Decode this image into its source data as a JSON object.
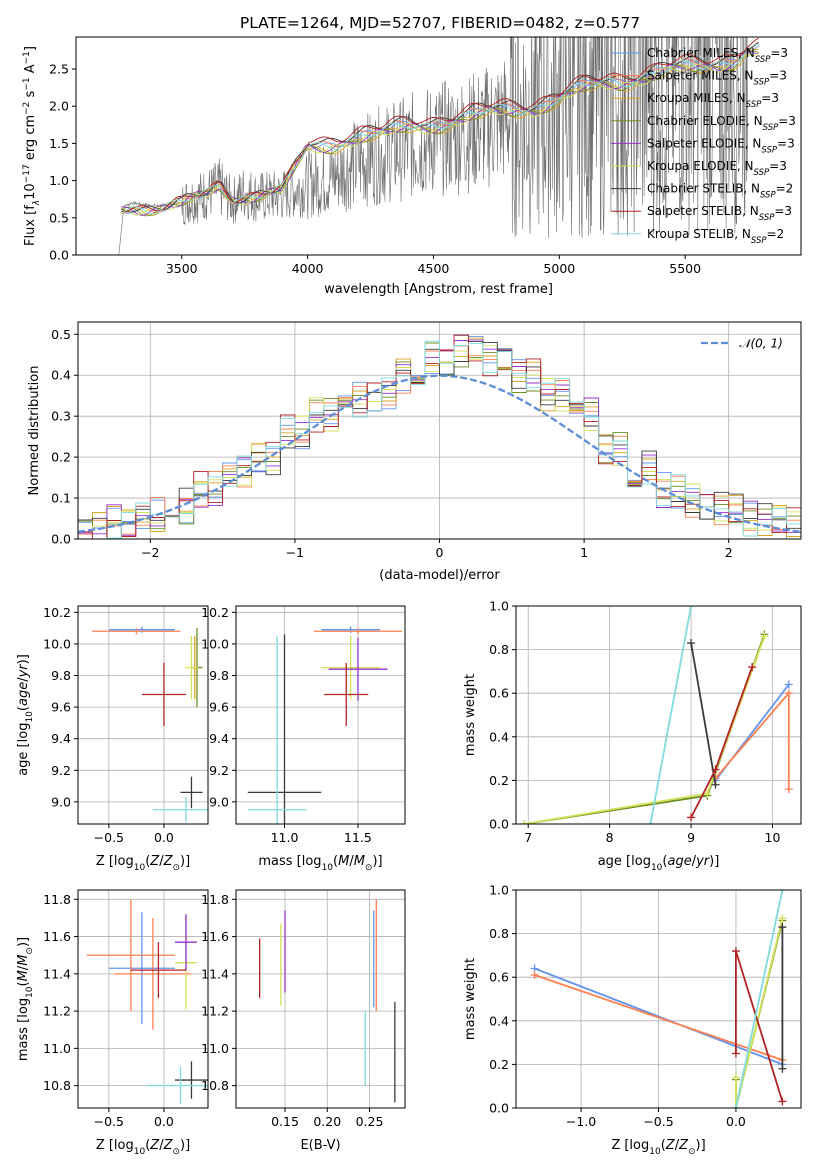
{
  "figure": {
    "title": "PLATE=1264, MJD=52707, FIBERID=0482, z=0.577"
  },
  "legend_series": [
    {
      "name": "Chabrier MILES, N_SSP=3",
      "color": "#6495ed"
    },
    {
      "name": "Salpeter MILES, N_SSP=3",
      "color": "#ff7f50"
    },
    {
      "name": "Kroupa MILES, N_SSP=3",
      "color": "#daa520"
    },
    {
      "name": "Chabrier ELODIE, N_SSP=3",
      "color": "#6b8e23"
    },
    {
      "name": "Salpeter ELODIE, N_SSP=3",
      "color": "#9932cc"
    },
    {
      "name": "Kroupa ELODIE, N_SSP=3",
      "color": "#d4e157"
    },
    {
      "name": "Chabrier STELIB, N_SSP=2",
      "color": "#3a3a3a"
    },
    {
      "name": "Salpeter STELIB, N_SSP=3",
      "color": "#b22222"
    },
    {
      "name": "Kroupa STELIB, N_SSP=2",
      "color": "#7fdbde"
    }
  ],
  "chart_data": [
    {
      "id": "spectrum",
      "type": "line",
      "title": "PLATE=1264, MJD=52707, FIBERID=0482, z=0.577",
      "xlabel": "wavelength [Angstrom, rest frame]",
      "ylabel": "Flux [f_λ 10^-17 erg cm^-2 s^-1 A^-1]",
      "ylabel_parts": [
        "Flux [f",
        "λ",
        "10",
        "−17",
        " erg cm",
        "−2",
        " s",
        "−1",
        " A",
        "−1",
        "]"
      ],
      "xlim": [
        3080,
        5960
      ],
      "ylim": [
        0,
        2.93
      ],
      "xticks": [
        3500,
        4000,
        4500,
        5000,
        5500
      ],
      "yticks": [
        0.0,
        0.5,
        1.0,
        1.5,
        2.0,
        2.5
      ],
      "grid": false,
      "legend_position": "upper right",
      "data_observed": {
        "x": [
          3250,
          3270,
          3300,
          3400,
          3500,
          3600,
          3650,
          3700,
          3750,
          3800,
          3900,
          4000,
          4100,
          4200,
          4300,
          4400,
          4500,
          4600,
          4700,
          4800,
          4900,
          5000,
          5100,
          5200,
          5300,
          5400,
          5500,
          5600,
          5700,
          5750
        ],
        "y": [
          0.0,
          0.65,
          0.7,
          0.66,
          0.7,
          0.82,
          0.9,
          0.72,
          0.85,
          0.78,
          0.8,
          0.95,
          1.05,
          1.25,
          1.35,
          1.45,
          1.55,
          1.6,
          1.7,
          1.85,
          1.95,
          2.05,
          2.1,
          2.2,
          2.25,
          2.35,
          2.45,
          2.5,
          2.55,
          2.6
        ]
      },
      "model_envelope": {
        "x": [
          3250,
          3300,
          3400,
          3500,
          3600,
          3650,
          3700,
          3800,
          3900,
          4000,
          4100,
          4200,
          4300,
          4400,
          4500,
          4600,
          4700,
          4800,
          4900,
          5000,
          5100,
          5200,
          5300,
          5400,
          5500,
          5600,
          5700,
          5750
        ],
        "y": [
          0.6,
          0.65,
          0.65,
          0.68,
          0.8,
          0.95,
          0.78,
          0.82,
          0.85,
          1.45,
          1.52,
          1.6,
          1.62,
          1.75,
          1.78,
          1.82,
          1.9,
          1.98,
          2.0,
          2.1,
          2.25,
          2.35,
          2.38,
          2.45,
          2.52,
          2.58,
          2.65,
          2.75
        ]
      }
    },
    {
      "id": "residuals",
      "type": "step",
      "xlabel": "(data-model)/error",
      "ylabel": "Normed distribution",
      "xlim": [
        -2.5,
        2.5
      ],
      "ylim": [
        0,
        0.53
      ],
      "xticks": [
        -2,
        -1,
        0,
        1,
        2
      ],
      "yticks": [
        0.0,
        0.1,
        0.2,
        0.3,
        0.4,
        0.5
      ],
      "grid": true,
      "legend": "𝒩(0, 1)",
      "legend_position": "upper right",
      "normal_curve": {
        "mu": 0,
        "sigma": 1,
        "color": "#5b8ed6"
      },
      "bin_edges": [
        -2.5,
        -2.3,
        -2.1,
        -1.9,
        -1.7,
        -1.5,
        -1.3,
        -1.1,
        -0.9,
        -0.7,
        -0.5,
        -0.3,
        -0.1,
        0.1,
        0.3,
        0.5,
        0.7,
        0.9,
        1.1,
        1.3,
        1.5,
        1.7,
        1.9,
        2.1,
        2.3,
        2.5
      ],
      "hist_reference": [
        0.02,
        0.04,
        0.06,
        0.08,
        0.12,
        0.16,
        0.2,
        0.26,
        0.3,
        0.34,
        0.35,
        0.4,
        0.44,
        0.46,
        0.44,
        0.4,
        0.35,
        0.3,
        0.22,
        0.17,
        0.12,
        0.09,
        0.07,
        0.05,
        0.04
      ]
    },
    {
      "id": "age_vs_Z",
      "type": "scatter",
      "xlabel": "Z [log10(Z/Z⊙)]",
      "ylabel": "age [log10(age/yr)]",
      "xlim": [
        -0.78,
        0.4
      ],
      "ylim": [
        8.86,
        10.24
      ],
      "xticks": [
        -0.5,
        0.0
      ],
      "yticks": [
        9.0,
        9.2,
        9.4,
        9.6,
        9.8,
        10.0,
        10.2
      ],
      "grid": true,
      "points": [
        {
          "x": -0.2,
          "y": 10.09,
          "xerr": 0.3,
          "yerr": 0.02,
          "series": 0
        },
        {
          "x": -0.25,
          "y": 10.08,
          "xerr": 0.4,
          "yerr": 0.02,
          "series": 1
        },
        {
          "x": 0.28,
          "y": 9.85,
          "xerr": 0.04,
          "yerr": 0.2,
          "series": 2
        },
        {
          "x": 0.3,
          "y": 9.85,
          "xerr": 0.05,
          "yerr": 0.25,
          "series": 3
        },
        {
          "x": 0.25,
          "y": 9.85,
          "xerr": 0.06,
          "yerr": 0.2,
          "series": 5
        },
        {
          "x": 0.0,
          "y": 9.68,
          "xerr": 0.2,
          "yerr": 0.2,
          "series": 7
        },
        {
          "x": 0.25,
          "y": 9.06,
          "xerr": 0.1,
          "yerr": 0.1,
          "series": 6
        },
        {
          "x": 0.2,
          "y": 8.95,
          "xerr": 0.3,
          "yerr": 0.08,
          "series": 8
        }
      ]
    },
    {
      "id": "age_vs_mass",
      "type": "scatter",
      "xlabel": "mass [log10(M/M⊙)]",
      "ylabel": "",
      "xlim": [
        10.67,
        11.82
      ],
      "ylim": [
        8.86,
        10.24
      ],
      "xticks": [
        11.0,
        11.5
      ],
      "yticks": [
        9.0,
        9.2,
        9.4,
        9.6,
        9.8,
        10.0,
        10.2
      ],
      "grid": true,
      "points": [
        {
          "x": 11.45,
          "y": 10.09,
          "xerr": 0.2,
          "yerr": 0.02,
          "series": 0
        },
        {
          "x": 11.5,
          "y": 10.08,
          "xerr": 0.3,
          "yerr": 0.02,
          "series": 1
        },
        {
          "x": 11.45,
          "y": 9.85,
          "xerr": 0.2,
          "yerr": 0.2,
          "series": 5
        },
        {
          "x": 11.5,
          "y": 9.84,
          "xerr": 0.2,
          "yerr": 0.2,
          "series": 4
        },
        {
          "x": 11.42,
          "y": 9.68,
          "xerr": 0.15,
          "yerr": 0.2,
          "series": 7
        },
        {
          "x": 11.0,
          "y": 9.06,
          "xerr": 0.25,
          "yerr": 1.0,
          "series": 6
        },
        {
          "x": 10.95,
          "y": 8.95,
          "xerr": 0.2,
          "yerr": 1.1,
          "series": 8
        }
      ]
    },
    {
      "id": "weight_vs_age",
      "type": "line",
      "xlabel": "age [log10(age/yr)]",
      "ylabel": "mass weight",
      "xlim": [
        6.85,
        10.35
      ],
      "ylim": [
        0.0,
        1.0
      ],
      "xticks": [
        7,
        8,
        9,
        10
      ],
      "yticks": [
        0.0,
        0.2,
        0.4,
        0.6,
        0.8,
        1.0
      ],
      "grid": true,
      "series": [
        {
          "series": 0,
          "x": [
            9.3,
            10.2
          ],
          "y": [
            0.2,
            0.64
          ]
        },
        {
          "series": 1,
          "x": [
            9.3,
            10.2,
            10.2
          ],
          "y": [
            0.21,
            0.6,
            0.16
          ]
        },
        {
          "series": 3,
          "x": [
            6.95,
            9.2,
            9.9
          ],
          "y": [
            0.0,
            0.13,
            0.87
          ]
        },
        {
          "series": 5,
          "x": [
            6.95,
            9.2,
            9.9
          ],
          "y": [
            0.0,
            0.14,
            0.86
          ]
        },
        {
          "series": 6,
          "x": [
            9.0,
            9.3
          ],
          "y": [
            0.83,
            0.18
          ]
        },
        {
          "series": 7,
          "x": [
            9.0,
            9.3,
            9.75
          ],
          "y": [
            0.03,
            0.25,
            0.72
          ]
        },
        {
          "series": 8,
          "x": [
            8.5,
            9.0
          ],
          "y": [
            0.0,
            1.0
          ]
        }
      ]
    },
    {
      "id": "mass_vs_Z",
      "type": "scatter",
      "xlabel": "Z [log10(Z/Z⊙)]",
      "ylabel": "mass [log10(M/M⊙)]",
      "xlim": [
        -0.78,
        0.4
      ],
      "ylim": [
        10.68,
        11.85
      ],
      "xticks": [
        -0.5,
        0.0
      ],
      "yticks": [
        10.8,
        11.0,
        11.2,
        11.4,
        11.6,
        11.8
      ],
      "grid": true,
      "points": [
        {
          "x": -0.2,
          "y": 11.43,
          "xerr": 0.3,
          "yerr": 0.3,
          "series": 0
        },
        {
          "x": -0.1,
          "y": 11.4,
          "xerr": 0.35,
          "yerr": 0.3,
          "series": 1
        },
        {
          "x": -0.3,
          "y": 11.5,
          "xerr": 0.4,
          "yerr": 0.3,
          "series": 1
        },
        {
          "x": 0.2,
          "y": 11.46,
          "xerr": 0.1,
          "yerr": 0.25,
          "series": 5
        },
        {
          "x": 0.2,
          "y": 11.57,
          "xerr": 0.1,
          "yerr": 0.15,
          "series": 4
        },
        {
          "x": -0.05,
          "y": 11.42,
          "xerr": 0.25,
          "yerr": 0.15,
          "series": 7
        },
        {
          "x": 0.25,
          "y": 10.83,
          "xerr": 0.15,
          "yerr": 0.1,
          "series": 6
        },
        {
          "x": 0.15,
          "y": 10.8,
          "xerr": 0.3,
          "yerr": 0.1,
          "series": 8
        }
      ]
    },
    {
      "id": "mass_vs_ebv",
      "type": "scatter",
      "xlabel": "E(B-V)",
      "ylabel": "",
      "xlim": [
        0.092,
        0.292
      ],
      "ylim": [
        10.68,
        11.85
      ],
      "xticks": [
        0.15,
        0.2,
        0.25
      ],
      "xtick_labels": [
        "0.15",
        "0.20",
        "0.25"
      ],
      "yticks": [
        10.8,
        11.0,
        11.2,
        11.4,
        11.6,
        11.8
      ],
      "grid": true,
      "points": [
        {
          "x": 0.12,
          "y": 11.43,
          "yerr": 0.16,
          "series": 7
        },
        {
          "x": 0.145,
          "y": 11.45,
          "yerr": 0.22,
          "series": 5
        },
        {
          "x": 0.15,
          "y": 11.52,
          "yerr": 0.22,
          "series": 4
        },
        {
          "x": 0.255,
          "y": 11.48,
          "yerr": 0.26,
          "series": 0
        },
        {
          "x": 0.258,
          "y": 11.5,
          "yerr": 0.3,
          "series": 1
        },
        {
          "x": 0.245,
          "y": 11.0,
          "yerr": 0.2,
          "series": 8
        },
        {
          "x": 0.28,
          "y": 10.98,
          "yerr": 0.27,
          "series": 6
        }
      ]
    },
    {
      "id": "weight_vs_Z",
      "type": "line",
      "xlabel": "Z [log10(Z/Z⊙)]",
      "ylabel": "mass weight",
      "xlim": [
        -1.42,
        0.42
      ],
      "ylim": [
        0.0,
        1.0
      ],
      "xticks": [
        -1.0,
        -0.5,
        0.0
      ],
      "yticks": [
        0.0,
        0.2,
        0.4,
        0.6,
        0.8,
        1.0
      ],
      "grid": true,
      "series": [
        {
          "series": 0,
          "x": [
            -1.3,
            0.3
          ],
          "y": [
            0.64,
            0.2
          ]
        },
        {
          "series": 1,
          "x": [
            -1.3,
            0.3
          ],
          "y": [
            0.61,
            0.22
          ]
        },
        {
          "series": 3,
          "x": [
            0.0,
            0.0,
            0.3
          ],
          "y": [
            0.13,
            0.0,
            0.86
          ]
        },
        {
          "series": 5,
          "x": [
            0.0,
            0.0,
            0.3
          ],
          "y": [
            0.14,
            0.0,
            0.87
          ]
        },
        {
          "series": 6,
          "x": [
            0.3,
            0.3
          ],
          "y": [
            0.83,
            0.18
          ]
        },
        {
          "series": 7,
          "x": [
            0.0,
            0.0,
            0.3
          ],
          "y": [
            0.25,
            0.72,
            0.03
          ]
        },
        {
          "series": 8,
          "x": [
            0.0,
            0.3
          ],
          "y": [
            0.0,
            1.0
          ]
        }
      ]
    }
  ]
}
